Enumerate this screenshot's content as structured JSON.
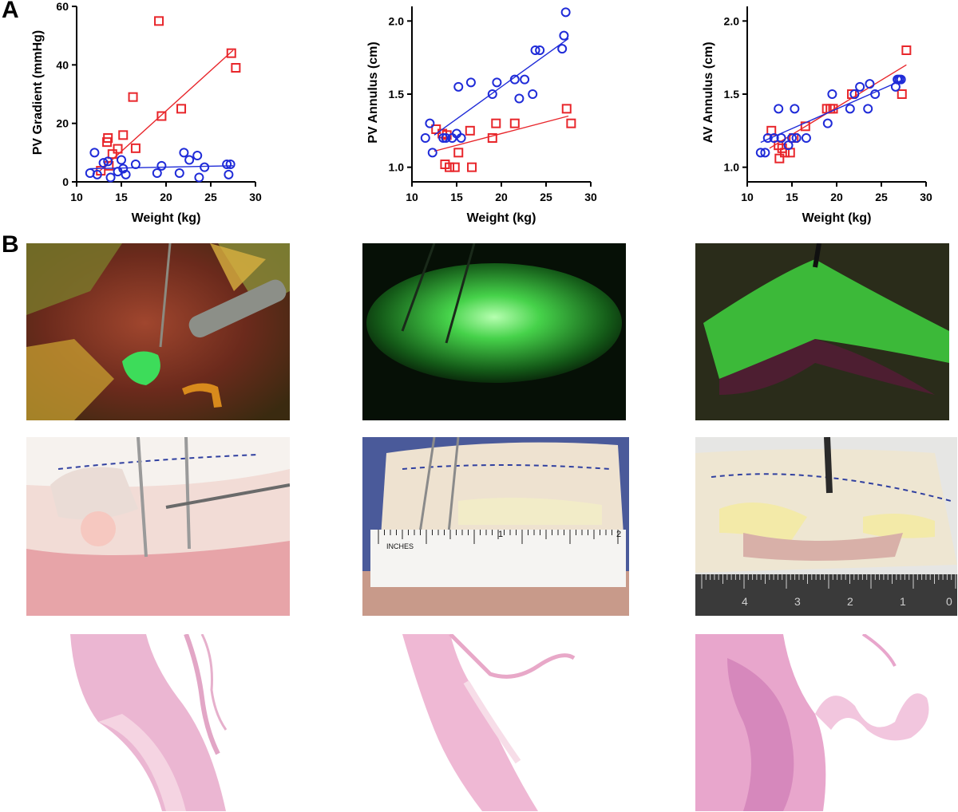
{
  "figure": {
    "panel_a_label": "A",
    "panel_b_label": "B"
  },
  "chart_data": [
    {
      "type": "scatter",
      "xlabel": "Weight (kg)",
      "ylabel": "PV Gradient (mmHg)",
      "xlim": [
        10,
        30
      ],
      "ylim": [
        0,
        60
      ],
      "xticks": [
        10,
        15,
        20,
        25,
        30
      ],
      "yticks": [
        0,
        20,
        40,
        60
      ],
      "grid": false,
      "series": [
        {
          "color": "#e8262b",
          "marker": "square",
          "points": [
            [
              12.7,
              3.8
            ],
            [
              13.4,
              13.6
            ],
            [
              13.5,
              15
            ],
            [
              13.6,
              5.5
            ],
            [
              14.0,
              9.5
            ],
            [
              14.6,
              11.3
            ],
            [
              15.2,
              16
            ],
            [
              16.3,
              29
            ],
            [
              16.6,
              11.5
            ],
            [
              19.2,
              55
            ],
            [
              19.5,
              22.5
            ],
            [
              21.7,
              25
            ],
            [
              27.3,
              44
            ],
            [
              27.8,
              39
            ]
          ],
          "fit": [
            [
              12.5,
              3.5
            ],
            [
              27.5,
              45
            ]
          ]
        },
        {
          "color": "#1f2bd8",
          "marker": "circle",
          "points": [
            [
              11.5,
              3
            ],
            [
              12.0,
              10
            ],
            [
              12.3,
              2.5
            ],
            [
              13.0,
              6.5
            ],
            [
              13.5,
              7
            ],
            [
              13.8,
              1.5
            ],
            [
              14.6,
              3.5
            ],
            [
              15.0,
              7.5
            ],
            [
              15.2,
              4.5
            ],
            [
              15.5,
              2.5
            ],
            [
              16.6,
              6
            ],
            [
              19.0,
              3
            ],
            [
              19.5,
              5.5
            ],
            [
              21.5,
              3
            ],
            [
              22.0,
              10
            ],
            [
              22.6,
              7.5
            ],
            [
              23.5,
              9
            ],
            [
              23.7,
              1.5
            ],
            [
              24.3,
              5
            ],
            [
              26.8,
              6
            ],
            [
              27.0,
              2.5
            ],
            [
              27.2,
              6
            ]
          ],
          "fit": [
            [
              11.5,
              4.5
            ],
            [
              27.5,
              5.5
            ]
          ]
        }
      ]
    },
    {
      "type": "scatter",
      "xlabel": "Weight (kg)",
      "ylabel": "PV Annulus (cm)",
      "xlim": [
        10,
        30
      ],
      "ylim": [
        0.9,
        2.1
      ],
      "xticks": [
        10,
        15,
        20,
        25,
        30
      ],
      "yticks": [
        1.0,
        1.5,
        2.0
      ],
      "grid": false,
      "series": [
        {
          "color": "#e8262b",
          "marker": "square",
          "points": [
            [
              12.7,
              1.26
            ],
            [
              13.4,
              1.23
            ],
            [
              13.7,
              1.02
            ],
            [
              13.9,
              1.22
            ],
            [
              14.2,
              1.0
            ],
            [
              14.8,
              1.0
            ],
            [
              15.2,
              1.1
            ],
            [
              16.5,
              1.25
            ],
            [
              16.7,
              1.0
            ],
            [
              19.0,
              1.2
            ],
            [
              19.4,
              1.3
            ],
            [
              21.5,
              1.3
            ],
            [
              27.3,
              1.4
            ],
            [
              27.8,
              1.3
            ]
          ],
          "fit": [
            [
              12.5,
              1.11
            ],
            [
              27.5,
              1.35
            ]
          ]
        },
        {
          "color": "#1f2bd8",
          "marker": "circle",
          "points": [
            [
              11.5,
              1.2
            ],
            [
              12.0,
              1.3
            ],
            [
              12.3,
              1.1
            ],
            [
              13.5,
              1.2
            ],
            [
              13.8,
              1.2
            ],
            [
              14.5,
              1.2
            ],
            [
              15.0,
              1.23
            ],
            [
              15.2,
              1.55
            ],
            [
              15.5,
              1.2
            ],
            [
              16.6,
              1.58
            ],
            [
              19.0,
              1.5
            ],
            [
              19.5,
              1.58
            ],
            [
              21.5,
              1.6
            ],
            [
              22.0,
              1.47
            ],
            [
              22.6,
              1.6
            ],
            [
              23.5,
              1.5
            ],
            [
              23.8,
              1.8
            ],
            [
              24.3,
              1.8
            ],
            [
              26.8,
              1.81
            ],
            [
              27.0,
              1.9
            ],
            [
              27.2,
              2.06
            ]
          ],
          "fit": [
            [
              12.5,
              1.22
            ],
            [
              27.5,
              1.88
            ]
          ]
        }
      ]
    },
    {
      "type": "scatter",
      "xlabel": "Weight (kg)",
      "ylabel": "AV Annulus (cm)",
      "xlim": [
        10,
        30
      ],
      "ylim": [
        0.9,
        2.1
      ],
      "xticks": [
        10,
        15,
        20,
        25,
        30
      ],
      "yticks": [
        1.0,
        1.5,
        2.0
      ],
      "grid": false,
      "series": [
        {
          "color": "#e8262b",
          "marker": "square",
          "points": [
            [
              12.7,
              1.25
            ],
            [
              13.5,
              1.15
            ],
            [
              13.6,
              1.06
            ],
            [
              13.9,
              1.13
            ],
            [
              14.2,
              1.1
            ],
            [
              14.8,
              1.1
            ],
            [
              15.2,
              1.2
            ],
            [
              16.5,
              1.28
            ],
            [
              18.9,
              1.4
            ],
            [
              19.3,
              1.4
            ],
            [
              19.6,
              1.4
            ],
            [
              21.7,
              1.5
            ],
            [
              27.3,
              1.5
            ],
            [
              27.8,
              1.8
            ]
          ],
          "fit": [
            [
              12.5,
              1.13
            ],
            [
              27.8,
              1.7
            ]
          ]
        },
        {
          "color": "#1f2bd8",
          "marker": "circle",
          "points": [
            [
              11.5,
              1.1
            ],
            [
              12.0,
              1.1
            ],
            [
              12.3,
              1.2
            ],
            [
              13.0,
              1.2
            ],
            [
              13.5,
              1.4
            ],
            [
              13.8,
              1.2
            ],
            [
              14.6,
              1.15
            ],
            [
              15.0,
              1.2
            ],
            [
              15.3,
              1.4
            ],
            [
              15.5,
              1.2
            ],
            [
              16.6,
              1.2
            ],
            [
              19.0,
              1.3
            ],
            [
              19.5,
              1.5
            ],
            [
              21.5,
              1.4
            ],
            [
              22.0,
              1.5
            ],
            [
              22.6,
              1.55
            ],
            [
              23.5,
              1.4
            ],
            [
              23.7,
              1.57
            ],
            [
              24.3,
              1.5
            ],
            [
              26.6,
              1.55
            ],
            [
              26.8,
              1.6
            ],
            [
              27.0,
              1.6
            ],
            [
              27.2,
              1.6
            ]
          ],
          "fit": [
            [
              11.5,
              1.17
            ],
            [
              27.5,
              1.6
            ]
          ]
        }
      ]
    }
  ],
  "photos": {
    "ruler_middle_label": "INCHES",
    "ruler_middle_numbers": [
      "1",
      "2"
    ],
    "ruler_right_numbers": [
      "4",
      "3",
      "2",
      "1",
      "0"
    ]
  }
}
